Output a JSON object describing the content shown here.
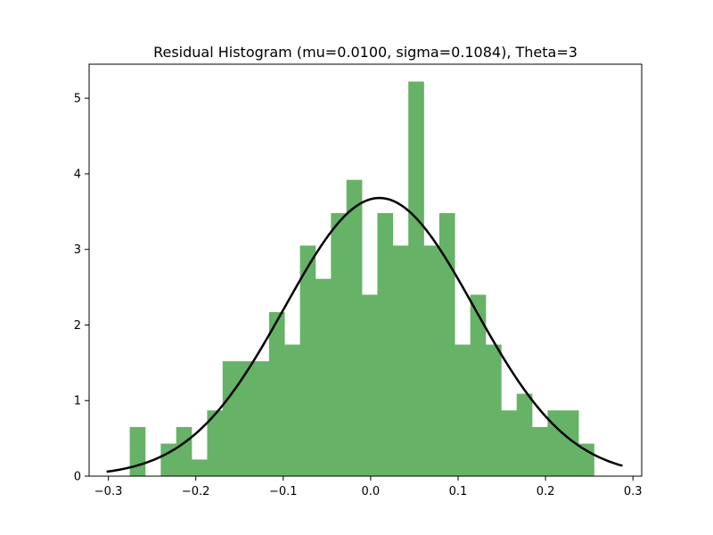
{
  "chart_data": {
    "type": "bar",
    "title": "Residual Histogram (mu=0.0100, sigma=0.1084), Theta=3",
    "xlabel": "",
    "ylabel": "",
    "xlim": [
      -0.322,
      0.31
    ],
    "ylim": [
      0,
      5.45
    ],
    "grid": false,
    "legend": "none",
    "bar_color": "#66b266",
    "curve_color": "#000000",
    "bin_edges": [
      -0.2755,
      -0.2578,
      -0.2401,
      -0.2224,
      -0.2047,
      -0.187,
      -0.1693,
      -0.1516,
      -0.1339,
      -0.1162,
      -0.0985,
      -0.0808,
      -0.0631,
      -0.0454,
      -0.0277,
      -0.01,
      0.0077,
      0.0254,
      0.0431,
      0.0608,
      0.0785,
      0.0962,
      0.1139,
      0.1316,
      0.1493,
      0.167,
      0.1847,
      0.2024,
      0.2201,
      0.2378,
      0.2555
    ],
    "bar_heights": [
      0.65,
      0.0,
      0.43,
      0.65,
      0.22,
      0.87,
      1.52,
      1.52,
      1.52,
      2.17,
      1.74,
      3.05,
      2.61,
      3.48,
      3.92,
      2.4,
      3.48,
      3.05,
      5.22,
      3.05,
      3.48,
      1.74,
      2.4,
      1.74,
      0.87,
      1.09,
      0.65,
      0.87,
      0.87,
      0.43
    ],
    "series": [
      {
        "type": "curve",
        "mu": 0.01,
        "sigma": 0.1084,
        "x_range": [
          -0.302,
          0.288
        ]
      }
    ],
    "x_ticks": [
      {
        "value": -0.3,
        "label": "−0.3"
      },
      {
        "value": -0.2,
        "label": "−0.2"
      },
      {
        "value": -0.1,
        "label": "−0.1"
      },
      {
        "value": 0.0,
        "label": "0.0"
      },
      {
        "value": 0.1,
        "label": "0.1"
      },
      {
        "value": 0.2,
        "label": "0.2"
      },
      {
        "value": 0.3,
        "label": "0.3"
      }
    ],
    "y_ticks": [
      {
        "value": 0,
        "label": "0"
      },
      {
        "value": 1,
        "label": "1"
      },
      {
        "value": 2,
        "label": "2"
      },
      {
        "value": 3,
        "label": "3"
      },
      {
        "value": 4,
        "label": "4"
      },
      {
        "value": 5,
        "label": "5"
      }
    ]
  }
}
